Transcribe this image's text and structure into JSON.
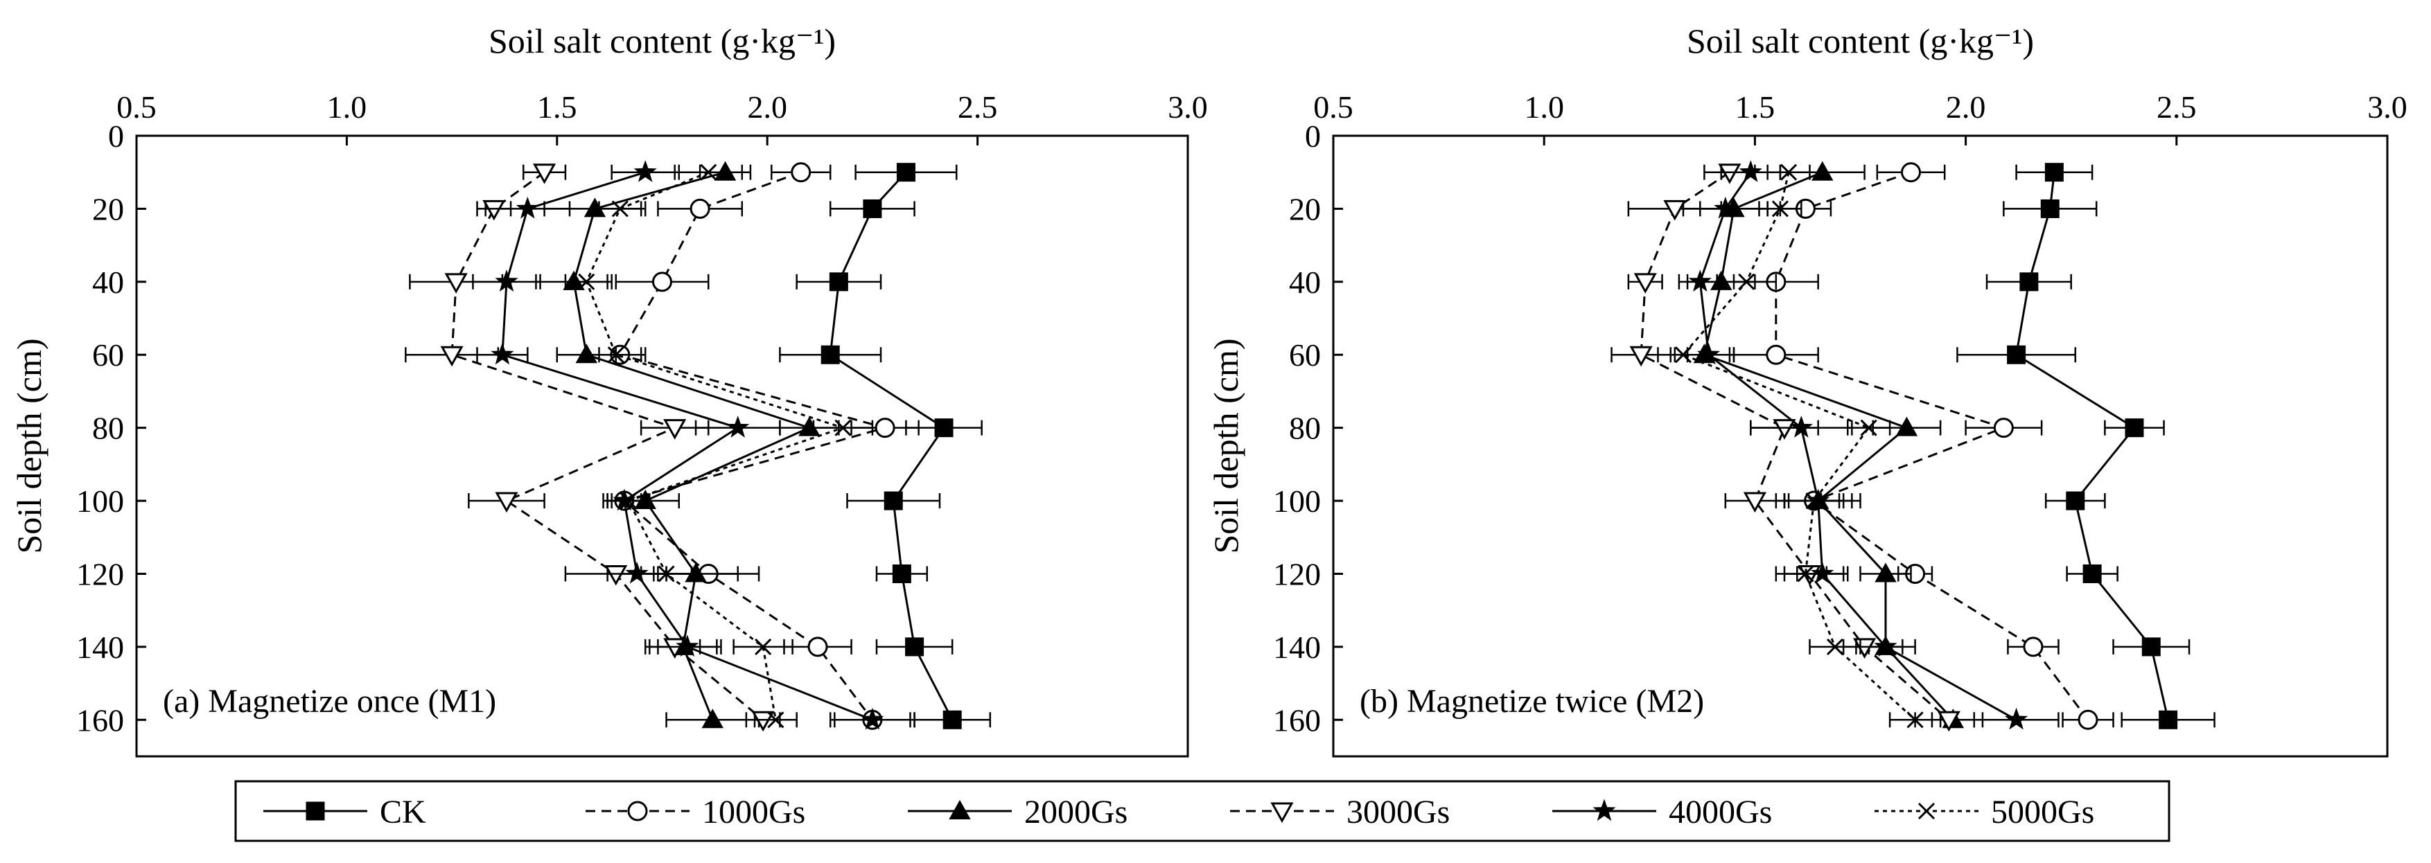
{
  "chart_data": [
    {
      "type": "line",
      "panel_label": "(a) Magnetize once (M1)",
      "title": "Soil salt content (g·kg⁻¹)",
      "xlabel": "Soil salt content (g·kg⁻¹)",
      "ylabel": "Soil depth (cm)",
      "xlim": [
        0.5,
        3.0
      ],
      "ylim": [
        0,
        170
      ],
      "xticks": [
        "0.5",
        "1.0",
        "1.5",
        "2.0",
        "2.5",
        "3.0"
      ],
      "yticks": [
        "0",
        "20",
        "40",
        "60",
        "80",
        "100",
        "120",
        "140",
        "160"
      ],
      "depth": [
        10,
        20,
        40,
        60,
        80,
        100,
        120,
        140,
        160
      ],
      "series": [
        {
          "name": "CK",
          "values": [
            2.33,
            2.25,
            2.17,
            2.15,
            2.42,
            2.3,
            2.32,
            2.35,
            2.44
          ],
          "err": [
            0.12,
            0.1,
            0.1,
            0.12,
            0.09,
            0.11,
            0.06,
            0.09,
            0.09
          ]
        },
        {
          "name": "1000Gs",
          "values": [
            2.08,
            1.84,
            1.75,
            1.65,
            2.28,
            1.66,
            1.86,
            2.12,
            2.25
          ],
          "err": [
            0.07,
            0.1,
            0.11,
            0.05,
            0.08,
            0.05,
            0.12,
            0.08,
            0.1
          ]
        },
        {
          "name": "2000Gs",
          "values": [
            1.9,
            1.59,
            1.54,
            1.57,
            2.1,
            1.71,
            1.83,
            1.8,
            1.87
          ],
          "err": [
            0.06,
            0.12,
            0.09,
            0.07,
            0.07,
            0.08,
            0.1,
            0.09,
            0.11
          ]
        },
        {
          "name": "3000Gs",
          "values": [
            1.47,
            1.35,
            1.26,
            1.25,
            1.78,
            1.38,
            1.64,
            1.78,
            1.99
          ],
          "err": [
            0.05,
            0.04,
            0.11,
            0.11,
            0.08,
            0.09,
            0.12,
            0.06,
            0.04
          ]
        },
        {
          "name": "4000Gs",
          "values": [
            1.71,
            1.43,
            1.38,
            1.37,
            1.93,
            1.66,
            1.69,
            1.81,
            2.25
          ],
          "err": [
            0.08,
            0.1,
            0.08,
            0.06,
            0.1,
            0.04,
            0.07,
            0.07,
            0.09
          ]
        },
        {
          "name": "5000Gs",
          "values": [
            1.86,
            1.65,
            1.57,
            1.64,
            2.18,
            1.67,
            1.76,
            1.99,
            2.02
          ],
          "err": [
            0.08,
            0.05,
            0.05,
            0.07,
            0.07,
            0.05,
            0.06,
            0.07,
            0.05
          ]
        }
      ]
    },
    {
      "type": "line",
      "panel_label": "(b) Magnetize twice (M2)",
      "title": "Soil salt content (g·kg⁻¹)",
      "xlabel": "Soil salt content (g·kg⁻¹)",
      "ylabel": "Soil depth (cm)",
      "xlim": [
        0.5,
        3.0
      ],
      "ylim": [
        0,
        170
      ],
      "xticks": [
        "0.5",
        "1.0",
        "1.5",
        "2.0",
        "2.5",
        "3.0"
      ],
      "yticks": [
        "0",
        "20",
        "40",
        "60",
        "80",
        "100",
        "120",
        "140",
        "160"
      ],
      "depth": [
        10,
        20,
        40,
        60,
        80,
        100,
        120,
        140,
        160
      ],
      "series": [
        {
          "name": "CK",
          "values": [
            2.21,
            2.2,
            2.15,
            2.12,
            2.4,
            2.26,
            2.3,
            2.44,
            2.48
          ],
          "err": [
            0.09,
            0.11,
            0.1,
            0.14,
            0.07,
            0.07,
            0.06,
            0.09,
            0.11
          ]
        },
        {
          "name": "1000Gs",
          "values": [
            1.87,
            1.62,
            1.55,
            1.55,
            2.09,
            1.64,
            1.88,
            2.16,
            2.29
          ],
          "err": [
            0.08,
            0.06,
            0.1,
            0.1,
            0.09,
            0.07,
            0.04,
            0.06,
            0.06
          ]
        },
        {
          "name": "2000Gs",
          "values": [
            1.66,
            1.45,
            1.42,
            1.38,
            1.86,
            1.65,
            1.81,
            1.81,
            1.97
          ],
          "err": [
            0.1,
            0.08,
            0.08,
            0.07,
            0.08,
            0.1,
            0.06,
            0.04,
            0.05
          ]
        },
        {
          "name": "3000Gs",
          "values": [
            1.44,
            1.31,
            1.24,
            1.23,
            1.57,
            1.5,
            1.63,
            1.76,
            1.96
          ],
          "err": [
            0.06,
            0.11,
            0.04,
            0.07,
            0.08,
            0.07,
            0.08,
            0.05,
            0.08
          ]
        },
        {
          "name": "4000Gs",
          "values": [
            1.49,
            1.43,
            1.37,
            1.39,
            1.61,
            1.65,
            1.66,
            1.81,
            2.12
          ],
          "err": [
            0.07,
            0.1,
            0.05,
            0.05,
            0.12,
            0.08,
            0.06,
            0.07,
            0.1
          ]
        },
        {
          "name": "5000Gs",
          "values": [
            1.58,
            1.56,
            1.48,
            1.33,
            1.77,
            1.64,
            1.62,
            1.69,
            1.88
          ],
          "err": [
            0.05,
            0.05,
            0.07,
            0.06,
            0.05,
            0.06,
            0.05,
            0.06,
            0.06
          ]
        }
      ]
    }
  ],
  "legend": {
    "entries": [
      "CK",
      "1000Gs",
      "2000Gs",
      "3000Gs",
      "4000Gs",
      "5000Gs"
    ],
    "placement": "bottom"
  }
}
